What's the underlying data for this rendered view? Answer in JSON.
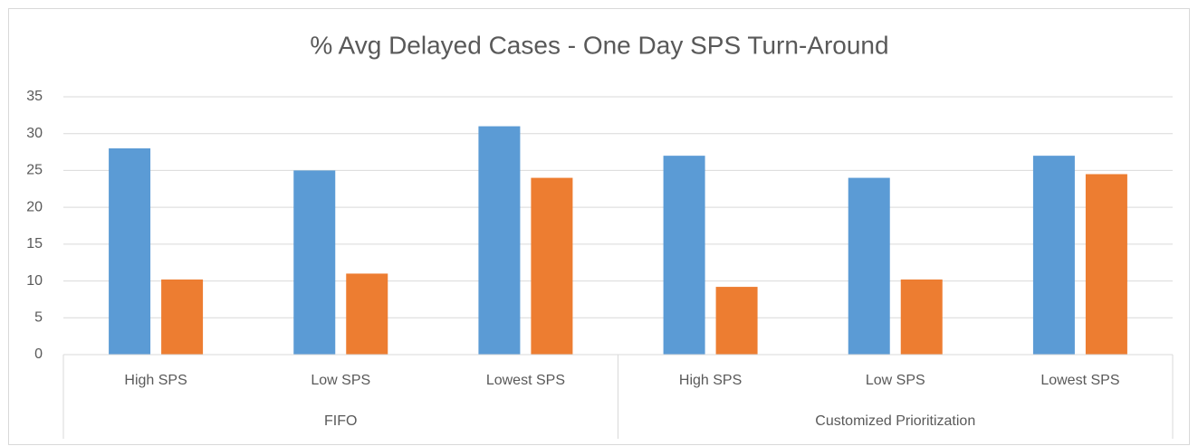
{
  "chart_data": {
    "type": "bar",
    "title": "% Avg Delayed Cases - One Day SPS Turn-Around",
    "groups": [
      {
        "label": "FIFO",
        "categories": [
          "High SPS",
          "Low SPS",
          "Lowest SPS"
        ]
      },
      {
        "label": "Customized Prioritization",
        "categories": [
          "High SPS",
          "Low SPS",
          "Lowest SPS"
        ]
      }
    ],
    "series": [
      {
        "color": "#5b9bd5",
        "values": [
          28,
          25,
          31,
          27,
          24,
          27
        ]
      },
      {
        "color": "#ed7d31",
        "values": [
          10.2,
          11,
          24,
          9.2,
          10.2,
          24.5
        ]
      }
    ],
    "ylim": [
      0,
      35
    ],
    "yticks": [
      0,
      5,
      10,
      15,
      20,
      25,
      30,
      35
    ],
    "grid": true
  }
}
